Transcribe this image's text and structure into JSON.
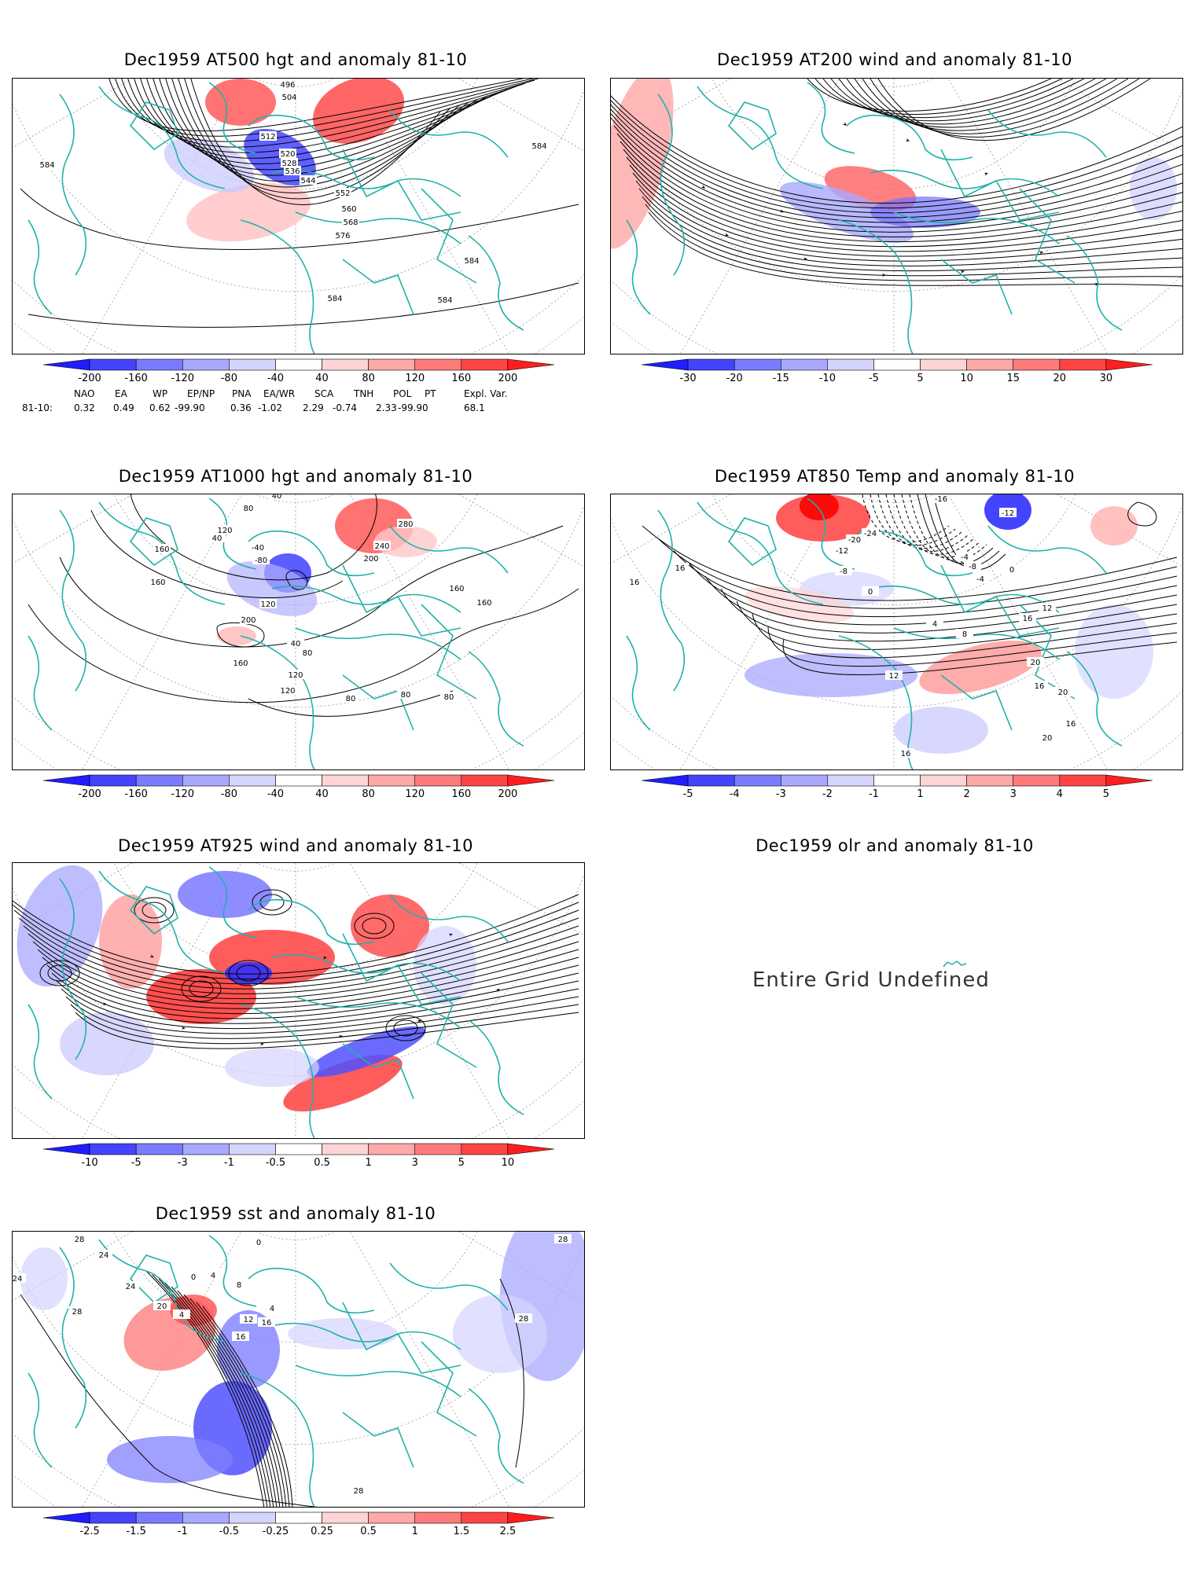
{
  "panels": [
    {
      "id": "p500",
      "title": "Dec1959 AT500 hgt and anomaly 81-10",
      "contour_labels": [
        "496",
        "504",
        "512",
        "520",
        "528",
        "536",
        "544",
        "552",
        "560",
        "568",
        "576",
        "584",
        "584",
        "584",
        "584",
        "584"
      ],
      "colorbar": [
        "-200",
        "-160",
        "-120",
        "-80",
        "-40",
        "40",
        "80",
        "120",
        "160",
        "200"
      ]
    },
    {
      "id": "p200",
      "title": "Dec1959 AT200 wind and anomaly 81-10",
      "colorbar": [
        "-30",
        "-20",
        "-15",
        "-10",
        "-5",
        "5",
        "10",
        "15",
        "20",
        "30"
      ]
    },
    {
      "id": "p1000",
      "title": "Dec1959 AT1000 hgt and anomaly 81-10",
      "contour_labels": [
        "40",
        "80",
        "120",
        "-40",
        "-80",
        "40",
        "160",
        "160",
        "200",
        "160",
        "280",
        "240",
        "200",
        "160",
        "120",
        "40",
        "80",
        "120",
        "160",
        "120",
        "80",
        "80",
        "80"
      ],
      "colorbar": [
        "-200",
        "-160",
        "-120",
        "-80",
        "-40",
        "40",
        "80",
        "120",
        "160",
        "200"
      ]
    },
    {
      "id": "p850",
      "title": "Dec1959 AT850 Temp and anomaly 81-10",
      "contour_labels": [
        "-16",
        "-12",
        "-24",
        "-20",
        "-12",
        "-8",
        "-4",
        "-8",
        "0",
        "-4",
        "0",
        "16",
        "16",
        "12",
        "16",
        "4",
        "8",
        "12",
        "20",
        "16",
        "20",
        "16",
        "20",
        "16"
      ],
      "colorbar": [
        "-5",
        "-4",
        "-3",
        "-2",
        "-1",
        "1",
        "2",
        "3",
        "4",
        "5"
      ]
    },
    {
      "id": "p925",
      "title": "Dec1959 AT925 wind and anomaly 81-10",
      "colorbar": [
        "-10",
        "-5",
        "-3",
        "-1",
        "-0.5",
        "0.5",
        "1",
        "3",
        "5",
        "10"
      ]
    },
    {
      "id": "polr",
      "title": "Dec1959 olr and anomaly 81-10",
      "message": "Entire Grid Undefined"
    },
    {
      "id": "psst",
      "title": "Dec1959 sst and anomaly 81-10",
      "contour_labels": [
        "28",
        "24",
        "24",
        "24",
        "28",
        "20",
        "4",
        "0",
        "4",
        "8",
        "12",
        "16",
        "16",
        "0",
        "4",
        "28",
        "28",
        "28"
      ],
      "colorbar": [
        "-2.5",
        "-1.5",
        "-1",
        "-0.5",
        "-0.25",
        "0.25",
        "0.5",
        "1",
        "1.5",
        "2.5"
      ]
    }
  ],
  "indices": {
    "headers": [
      "NAO",
      "EA",
      "WP",
      "EP/NP",
      "PNA",
      "EA/WR",
      "SCA",
      "TNH",
      "POL",
      "PT",
      "Expl. Var."
    ],
    "row_label": "81-10:",
    "values": [
      "0.32",
      "0.49",
      "0.62",
      "-99.90",
      "0.36",
      "-1.02",
      "2.29",
      "-0.74",
      "2.33",
      "-99.90",
      "68.1"
    ]
  },
  "colors": {
    "coast": "#20b2aa",
    "contour": "#000000",
    "neg_strong": "#2020ff",
    "pos_strong": "#ff2020"
  }
}
